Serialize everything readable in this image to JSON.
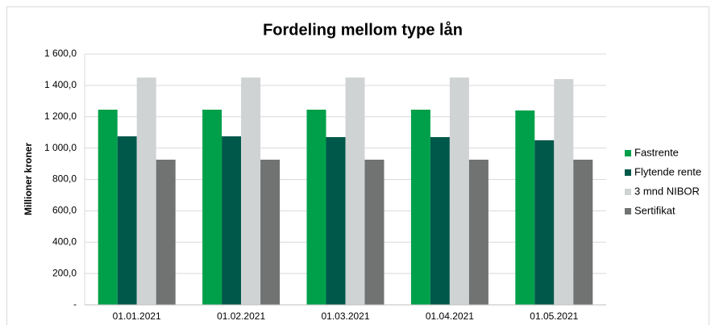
{
  "chart_data": {
    "type": "bar",
    "title": "Fordeling mellom type lån",
    "y_label": "Millioner kroner",
    "categories": [
      "01.01.2021",
      "01.02.2021",
      "01.03.2021",
      "01.04.2021",
      "01.05.2021"
    ],
    "series": [
      {
        "name": "Fastrente",
        "color": "#00a04b",
        "values": [
          1245,
          1245,
          1245,
          1245,
          1240
        ]
      },
      {
        "name": "Flytende rente",
        "color": "#00584a",
        "values": [
          1075,
          1075,
          1070,
          1070,
          1050
        ]
      },
      {
        "name": "3 mnd NIBOR",
        "color": "#d0d3d4",
        "values": [
          1450,
          1450,
          1450,
          1450,
          1440
        ]
      },
      {
        "name": "Sertifikat",
        "color": "#707372",
        "values": [
          926,
          926,
          926,
          926,
          926
        ]
      }
    ],
    "ylim": [
      0,
      1600
    ],
    "yticks": [
      {
        "value": 0,
        "label": "-"
      },
      {
        "value": 200,
        "label": "200,0"
      },
      {
        "value": 400,
        "label": "400,0"
      },
      {
        "value": 600,
        "label": "600,0"
      },
      {
        "value": 800,
        "label": "800,0"
      },
      {
        "value": 1000,
        "label": "1 000,0"
      },
      {
        "value": 1200,
        "label": "1 200,0"
      },
      {
        "value": 1400,
        "label": "1 400,0"
      },
      {
        "value": 1600,
        "label": "1 600,0"
      }
    ],
    "grid": true,
    "legend": "right"
  }
}
